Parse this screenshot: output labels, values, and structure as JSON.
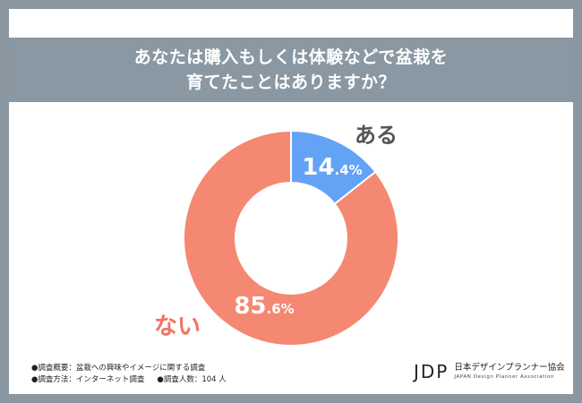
{
  "title": {
    "line1": "あなたは購入もしくは体験などで盆栽を",
    "line2": "育てたことはありますか？"
  },
  "chart_data": {
    "type": "pie",
    "variant": "donut",
    "slices": [
      {
        "label": "ある",
        "value": 14.4,
        "display_int": "14",
        "display_dec": ".4%",
        "color": "#63a3f5"
      },
      {
        "label": "ない",
        "value": 85.6,
        "display_int": "85",
        "display_dec": ".6%",
        "color": "#f58872"
      }
    ],
    "title": "あなたは購入もしくは体験などで盆栽を育てたことはありますか？"
  },
  "notes": {
    "overview": "●調査概要：盆栽への興味やイメージに関する調査",
    "method": "●調査方法：インターネット調査",
    "respondents": "●調査人数：104 人"
  },
  "logo": {
    "mark": "JDP",
    "name_ja": "日本デザインプランナー協会",
    "name_en": "JAPAN Design Planner Association"
  }
}
